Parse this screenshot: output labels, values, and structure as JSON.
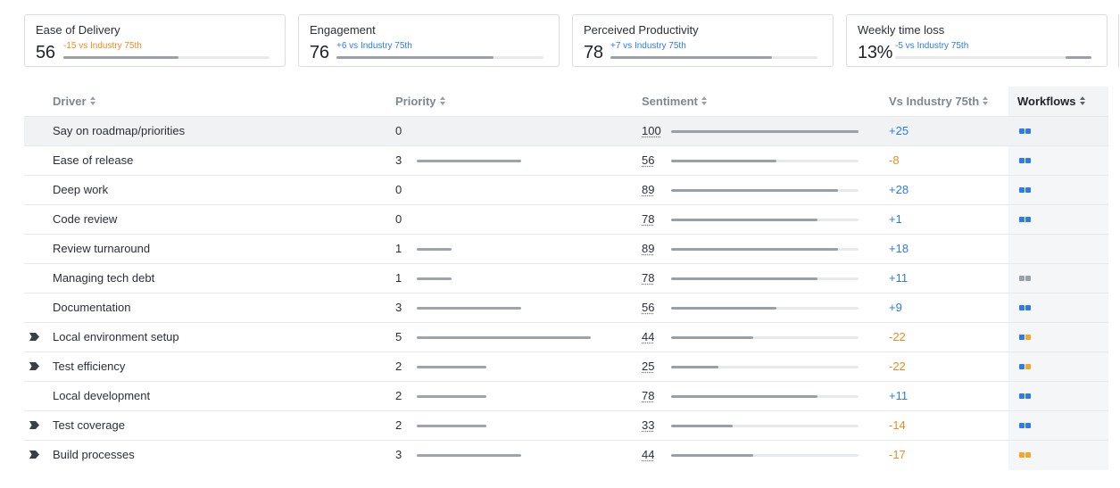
{
  "cards": [
    {
      "title": "Ease of Delivery",
      "value": "56",
      "delta": "-15 vs Industry 75th",
      "tone": "neg",
      "fill": 0.56
    },
    {
      "title": "Engagement",
      "value": "76",
      "delta": "+6 vs Industry 75th",
      "tone": "pos",
      "fill": 0.76
    },
    {
      "title": "Perceived Productivity",
      "value": "78",
      "delta": "+7 vs Industry 75th",
      "tone": "pos",
      "fill": 0.78
    },
    {
      "title": "Weekly time loss",
      "value": "13%",
      "delta": "-5 vs Industry 75th",
      "tone": "pos",
      "fill": 0.13
    }
  ],
  "table": {
    "headers": {
      "driver": "Driver",
      "priority": "Priority",
      "sentiment": "Sentiment",
      "vs_industry": "Vs Industry 75th",
      "workflows": "Workflows"
    },
    "rows": [
      {
        "driver": "Say on roadmap/priorities",
        "marker": false,
        "priority": "0",
        "priority_level": 0,
        "sentiment": "100",
        "delta": "+25",
        "tone": "pos",
        "workflows": [
          "blue",
          "blue"
        ]
      },
      {
        "driver": "Ease of release",
        "marker": false,
        "priority": "3",
        "priority_level": 3,
        "sentiment": "56",
        "delta": "-8",
        "tone": "neg",
        "workflows": [
          "blue",
          "blue"
        ]
      },
      {
        "driver": "Deep work",
        "marker": false,
        "priority": "0",
        "priority_level": 0,
        "sentiment": "89",
        "delta": "+28",
        "tone": "pos",
        "workflows": [
          "blue",
          "blue"
        ]
      },
      {
        "driver": "Code review",
        "marker": false,
        "priority": "0",
        "priority_level": 0,
        "sentiment": "78",
        "delta": "+1",
        "tone": "pos",
        "workflows": [
          "blue",
          "blue"
        ]
      },
      {
        "driver": "Review turnaround",
        "marker": false,
        "priority": "1",
        "priority_level": 1,
        "sentiment": "89",
        "delta": "+18",
        "tone": "pos",
        "workflows": []
      },
      {
        "driver": "Managing tech debt",
        "marker": false,
        "priority": "1",
        "priority_level": 1,
        "sentiment": "78",
        "delta": "+11",
        "tone": "pos",
        "workflows": [
          "gray",
          "gray"
        ]
      },
      {
        "driver": "Documentation",
        "marker": false,
        "priority": "3",
        "priority_level": 3,
        "sentiment": "56",
        "delta": "+9",
        "tone": "pos",
        "workflows": [
          "blue",
          "blue"
        ]
      },
      {
        "driver": "Local environment setup",
        "marker": true,
        "priority": "5",
        "priority_level": 5,
        "sentiment": "44",
        "delta": "-22",
        "tone": "neg",
        "workflows": [
          "blue",
          "orange"
        ]
      },
      {
        "driver": "Test efficiency",
        "marker": true,
        "priority": "2",
        "priority_level": 2,
        "sentiment": "25",
        "delta": "-22",
        "tone": "neg",
        "workflows": [
          "blue",
          "orange"
        ]
      },
      {
        "driver": "Local development",
        "marker": false,
        "priority": "2",
        "priority_level": 2,
        "sentiment": "78",
        "delta": "+11",
        "tone": "pos",
        "workflows": [
          "blue",
          "blue"
        ]
      },
      {
        "driver": "Test coverage",
        "marker": true,
        "priority": "2",
        "priority_level": 2,
        "sentiment": "33",
        "delta": "-14",
        "tone": "neg",
        "workflows": [
          "blue",
          "blue"
        ]
      },
      {
        "driver": "Build processes",
        "marker": true,
        "priority": "3",
        "priority_level": 3,
        "sentiment": "44",
        "delta": "-17",
        "tone": "neg",
        "workflows": [
          "orange",
          "orange"
        ]
      }
    ]
  },
  "colors": {
    "positive": "#2f7be6",
    "negative": "#f08a1c",
    "dot_blue": "#2f7be6",
    "dot_orange": "#f5a623",
    "dot_gray": "#9aa0a8"
  }
}
